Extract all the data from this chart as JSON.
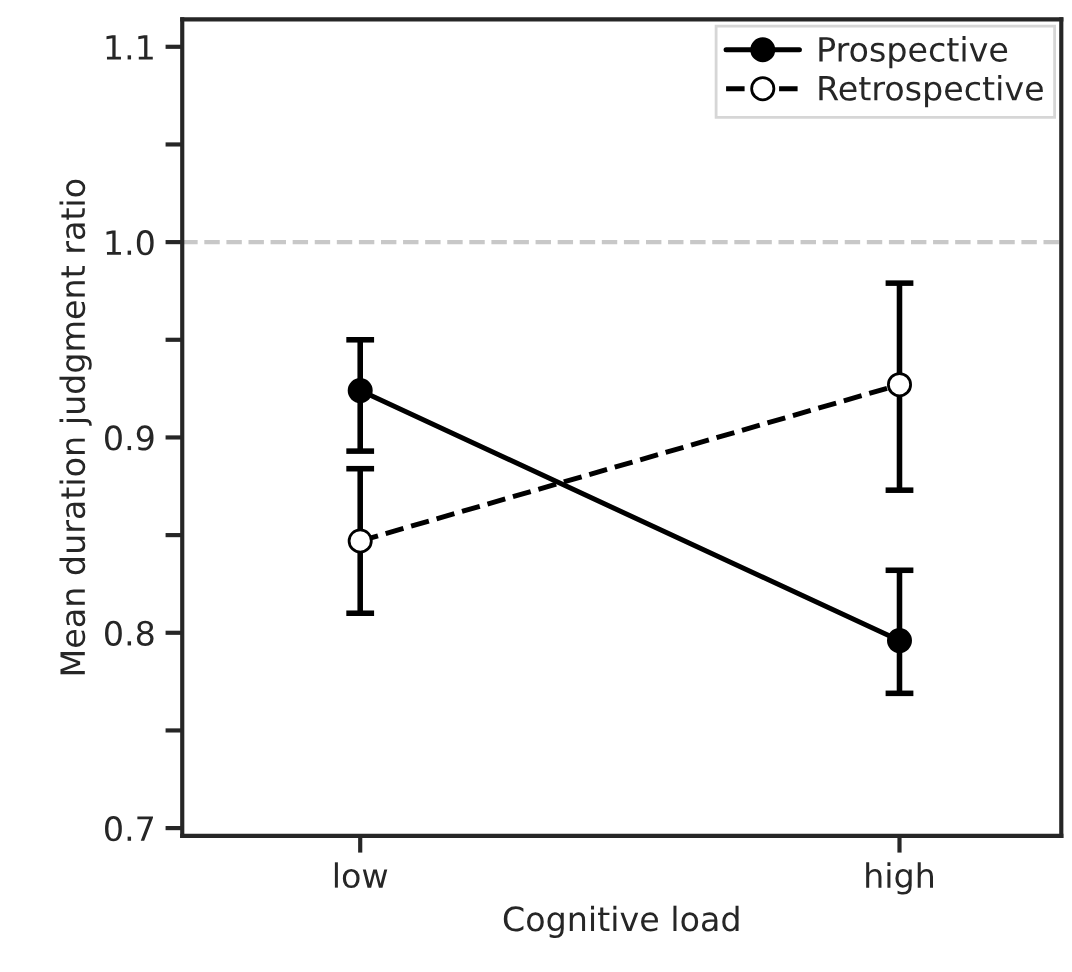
{
  "chart_data": {
    "type": "line",
    "xlabel": "Cognitive load",
    "ylabel": "Mean duration judgment ratio",
    "categories": [
      "low",
      "high"
    ],
    "series": [
      {
        "name": "Prospective",
        "color": "#000000",
        "values": [
          0.924,
          0.796
        ],
        "errors": [
          [
            0.893,
            0.95
          ],
          [
            0.769,
            0.832
          ]
        ],
        "marker": "circle",
        "line_style": "solid"
      },
      {
        "name": "Retrospective",
        "color": "#000000",
        "values": [
          0.847,
          0.927
        ],
        "errors": [
          [
            0.81,
            0.884
          ],
          [
            0.873,
            0.979
          ]
        ],
        "marker": "circle",
        "line_style": "dashed"
      }
    ],
    "ylim": [
      0.696,
      1.114
    ],
    "yticks": [
      0.7,
      {
        "value": 0.75,
        "label": null
      },
      0.8,
      {
        "value": 0.85,
        "label": null
      },
      0.9,
      {
        "value": 0.95,
        "label": null
      },
      {
        "value": 1.0,
        "label": "1.0"
      },
      {
        "value": 1.05,
        "label": null
      },
      1.1
    ],
    "ref_lines": [
      {
        "axis": "y",
        "value": 1.0,
        "color": "#c8c8c8",
        "line_style": "dashed"
      }
    ],
    "grid": false,
    "legend": "top right"
  }
}
